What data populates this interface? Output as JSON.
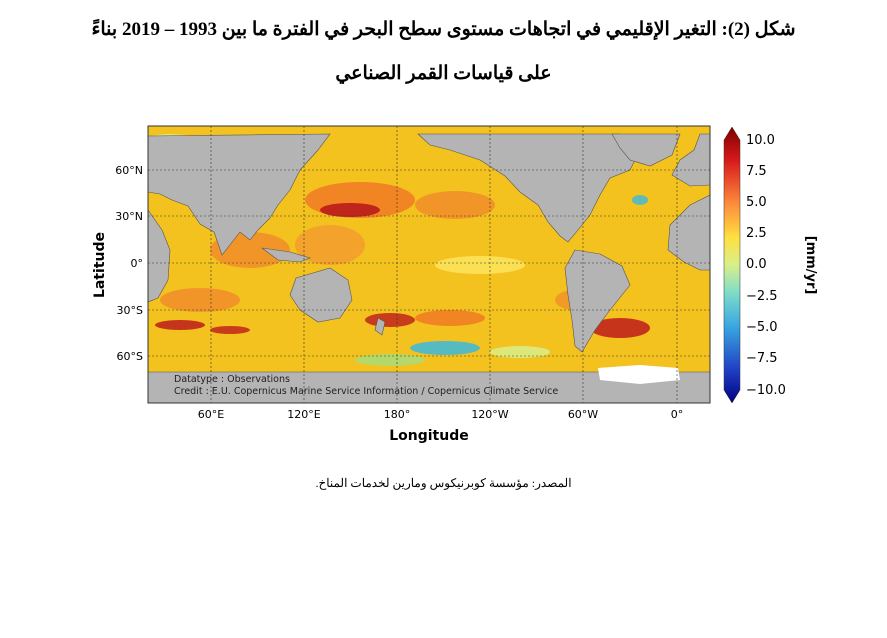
{
  "figure": {
    "title_line1": "شكل (2): التغير الإقليمي في اتجاهات مستوى سطح البحر في الفترة ما بين 1993 – 2019 بناءً",
    "title_line2": "على قياسات القمر الصناعي",
    "source": "المصدر: مؤسسة كوبرنيكوس ومارين لخدمات المناخ."
  },
  "map": {
    "x_axis_label": "Longitude",
    "y_axis_label": "Latitude",
    "x_ticks": [
      "60°E",
      "120°E",
      "180°",
      "120°W",
      "60°W",
      "0°"
    ],
    "y_ticks": [
      "60°N",
      "30°N",
      "0°",
      "30°S",
      "60°S"
    ],
    "annotation_line1": "Datatype : Observations",
    "annotation_line2": "Credit : E.U. Copernicus Marine Service Information / Copernicus Climate Service",
    "colorbar_label": "[mm/yr]",
    "colorbar_ticks": [
      "10.0",
      "7.5",
      "5.0",
      "2.5",
      "0.0",
      "−2.5",
      "−5.0",
      "−7.5",
      "−10.0"
    ],
    "colorbar_range": [
      -10,
      10
    ],
    "colors": {
      "land": "#b4b4b4",
      "ocean_base": "#f3c21f",
      "high": "#c0251b",
      "low": "#39b8df",
      "ice": "#ffffff"
    }
  }
}
